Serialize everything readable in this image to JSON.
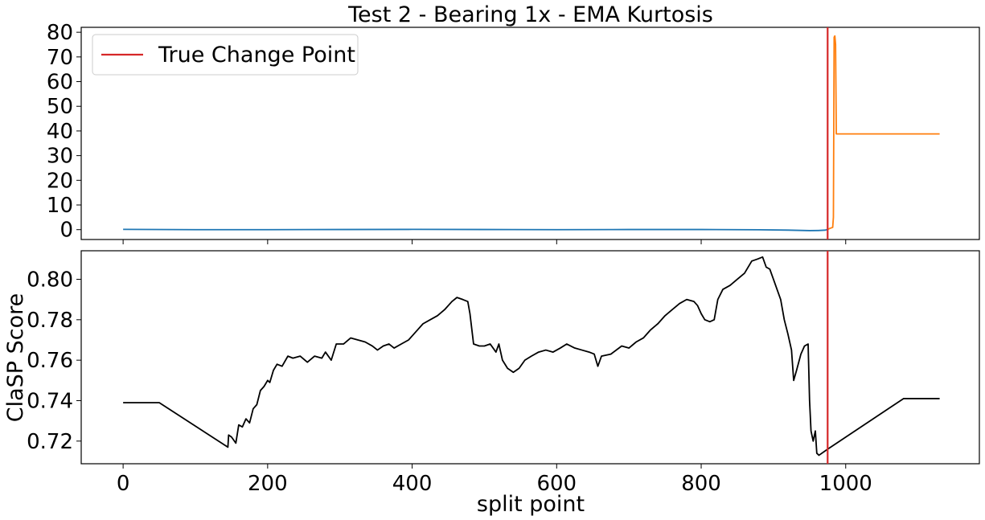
{
  "chart_data": [
    {
      "type": "line",
      "title": "Test 2 - Bearing 1x - EMA Kurtosis",
      "xlabel": "",
      "ylabel": "",
      "xlim": [
        -58,
        1185
      ],
      "ylim": [
        -4,
        82
      ],
      "yticks": [
        0,
        10,
        20,
        30,
        40,
        50,
        60,
        70,
        80
      ],
      "xticks": [
        0,
        200,
        400,
        600,
        800,
        1000
      ],
      "show_x_tick_labels": false,
      "grid": false,
      "legend": {
        "placement": "top-left",
        "entries": [
          "True Change Point"
        ]
      },
      "change_point": {
        "name": "True Change Point",
        "x": 975,
        "color": "#d62728"
      },
      "series": [
        {
          "color": "#1f77b4",
          "points": [
            [
              0,
              0.1
            ],
            [
              100,
              0.0
            ],
            [
              200,
              0.0
            ],
            [
              300,
              0.05
            ],
            [
              400,
              0.1
            ],
            [
              500,
              0.05
            ],
            [
              600,
              0.0
            ],
            [
              700,
              0.05
            ],
            [
              800,
              0.05
            ],
            [
              880,
              -0.05
            ],
            [
              920,
              -0.2
            ],
            [
              950,
              -0.4
            ],
            [
              962,
              -0.35
            ],
            [
              972,
              -0.2
            ],
            [
              975,
              0.1
            ]
          ]
        },
        {
          "color": "#ff7f0e",
          "points": [
            [
              975,
              0.1
            ],
            [
              978,
              0.5
            ],
            [
              982,
              0.9
            ],
            [
              983,
              5.0
            ],
            [
              984,
              78.0
            ],
            [
              985,
              78.5
            ],
            [
              986,
              75.0
            ],
            [
              987,
              38.8
            ],
            [
              990,
              38.8
            ],
            [
              1000,
              38.8
            ],
            [
              1050,
              38.8
            ],
            [
              1100,
              38.8
            ],
            [
              1130,
              38.8
            ]
          ]
        }
      ]
    },
    {
      "type": "line",
      "title": "",
      "xlabel": "split point",
      "ylabel": "ClaSP Score",
      "xlim": [
        -58,
        1185
      ],
      "ylim": [
        0.7088,
        0.8141
      ],
      "yticks": [
        0.72,
        0.74,
        0.76,
        0.78,
        0.8
      ],
      "ytick_labels": [
        "0.72",
        "0.74",
        "0.76",
        "0.78",
        "0.80"
      ],
      "xticks": [
        0,
        200,
        400,
        600,
        800,
        1000
      ],
      "xtick_labels": [
        "0",
        "200",
        "400",
        "600",
        "800",
        "1000"
      ],
      "grid": false,
      "change_point": {
        "x": 975,
        "color": "#d62728"
      },
      "series": [
        {
          "color": "#000000",
          "points": [
            [
              0,
              0.739
            ],
            [
              50,
              0.739
            ],
            [
              145,
              0.717
            ],
            [
              146,
              0.723
            ],
            [
              150,
              0.722
            ],
            [
              156,
              0.719
            ],
            [
              160,
              0.728
            ],
            [
              165,
              0.727
            ],
            [
              170,
              0.731
            ],
            [
              175,
              0.729
            ],
            [
              180,
              0.736
            ],
            [
              185,
              0.738
            ],
            [
              190,
              0.745
            ],
            [
              195,
              0.747
            ],
            [
              200,
              0.75
            ],
            [
              203,
              0.749
            ],
            [
              208,
              0.755
            ],
            [
              213,
              0.758
            ],
            [
              220,
              0.757
            ],
            [
              228,
              0.762
            ],
            [
              235,
              0.761
            ],
            [
              245,
              0.762
            ],
            [
              255,
              0.759
            ],
            [
              265,
              0.762
            ],
            [
              275,
              0.761
            ],
            [
              280,
              0.764
            ],
            [
              288,
              0.76
            ],
            [
              295,
              0.768
            ],
            [
              305,
              0.768
            ],
            [
              315,
              0.771
            ],
            [
              325,
              0.77
            ],
            [
              335,
              0.769
            ],
            [
              345,
              0.767
            ],
            [
              352,
              0.765
            ],
            [
              360,
              0.767
            ],
            [
              368,
              0.768
            ],
            [
              375,
              0.766
            ],
            [
              385,
              0.768
            ],
            [
              395,
              0.77
            ],
            [
              405,
              0.774
            ],
            [
              415,
              0.778
            ],
            [
              425,
              0.78
            ],
            [
              435,
              0.782
            ],
            [
              445,
              0.785
            ],
            [
              455,
              0.789
            ],
            [
              462,
              0.791
            ],
            [
              470,
              0.79
            ],
            [
              477,
              0.789
            ],
            [
              480,
              0.783
            ],
            [
              485,
              0.768
            ],
            [
              493,
              0.767
            ],
            [
              500,
              0.767
            ],
            [
              508,
              0.768
            ],
            [
              516,
              0.764
            ],
            [
              520,
              0.768
            ],
            [
              525,
              0.76
            ],
            [
              532,
              0.756
            ],
            [
              540,
              0.754
            ],
            [
              548,
              0.756
            ],
            [
              556,
              0.76
            ],
            [
              565,
              0.762
            ],
            [
              575,
              0.764
            ],
            [
              585,
              0.765
            ],
            [
              595,
              0.764
            ],
            [
              605,
              0.766
            ],
            [
              614,
              0.768
            ],
            [
              625,
              0.766
            ],
            [
              635,
              0.765
            ],
            [
              645,
              0.764
            ],
            [
              652,
              0.763
            ],
            [
              657,
              0.757
            ],
            [
              662,
              0.762
            ],
            [
              675,
              0.763
            ],
            [
              690,
              0.767
            ],
            [
              700,
              0.766
            ],
            [
              710,
              0.769
            ],
            [
              720,
              0.771
            ],
            [
              730,
              0.775
            ],
            [
              740,
              0.778
            ],
            [
              750,
              0.782
            ],
            [
              760,
              0.785
            ],
            [
              770,
              0.788
            ],
            [
              780,
              0.79
            ],
            [
              790,
              0.789
            ],
            [
              795,
              0.787
            ],
            [
              800,
              0.783
            ],
            [
              805,
              0.78
            ],
            [
              812,
              0.779
            ],
            [
              818,
              0.78
            ],
            [
              823,
              0.79
            ],
            [
              830,
              0.795
            ],
            [
              840,
              0.797
            ],
            [
              850,
              0.8
            ],
            [
              860,
              0.803
            ],
            [
              870,
              0.809
            ],
            [
              878,
              0.81
            ],
            [
              885,
              0.811
            ],
            [
              890,
              0.806
            ],
            [
              895,
              0.805
            ],
            [
              900,
              0.8
            ],
            [
              905,
              0.795
            ],
            [
              910,
              0.79
            ],
            [
              915,
              0.78
            ],
            [
              920,
              0.773
            ],
            [
              925,
              0.765
            ],
            [
              928,
              0.75
            ],
            [
              932,
              0.755
            ],
            [
              938,
              0.763
            ],
            [
              943,
              0.767
            ],
            [
              948,
              0.768
            ],
            [
              950,
              0.74
            ],
            [
              952,
              0.725
            ],
            [
              955,
              0.72
            ],
            [
              958,
              0.725
            ],
            [
              960,
              0.714
            ],
            [
              963,
              0.713
            ],
            [
              975,
              0.716
            ],
            [
              1080,
              0.741
            ],
            [
              1130,
              0.741
            ]
          ]
        }
      ]
    }
  ]
}
